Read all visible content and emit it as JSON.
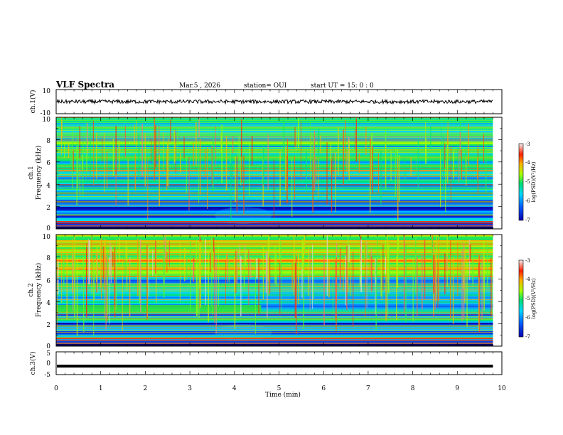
{
  "header": {
    "title": "VLF Spectra",
    "date": "Mar.5 , 2026",
    "station": "station= OUI",
    "start_ut": "start UT = 15: 0 : 0"
  },
  "chart_data": [
    {
      "id": "ch1_waveform",
      "type": "line",
      "ylabel": "ch.1(V)",
      "ylim": [
        -10,
        10
      ],
      "ytick_labels": [
        "10",
        "-10"
      ],
      "xlim": [
        0,
        10
      ],
      "trace": {
        "baseline_volts": 0,
        "noise_amplitude_volts": 1.5,
        "extent_min": [
          0,
          9.8
        ],
        "color": "#000000"
      }
    },
    {
      "id": "ch1_spectrogram",
      "type": "heatmap",
      "ylabel_lines": [
        "ch.1",
        "Frequency (kHz)"
      ],
      "ylim": [
        0,
        10
      ],
      "ytick_labels": [
        "0",
        "2",
        "4",
        "6",
        "8",
        "10"
      ],
      "xlim": [
        0,
        10
      ],
      "data_extent_min": [
        0,
        9.8
      ],
      "colorbar": {
        "label": "log(PSD)(V²/Hz)",
        "range": [
          -7,
          -3
        ],
        "tick_labels": [
          "-3",
          "-4",
          "-5",
          "-6",
          "-7"
        ],
        "colors": [
          "#0a00b0",
          "#0060ff",
          "#00d8ff",
          "#00e070",
          "#a8ff00",
          "#ffb000",
          "#ff2000",
          "#e0e0e0"
        ]
      },
      "features": [
        {
          "name": "power-line lines",
          "freq_khz": [
            0.3,
            0.55,
            0.7
          ],
          "color": "#ff3000"
        },
        {
          "name": "enhanced band",
          "freq_khz_range": [
            5.5,
            7.8
          ],
          "level": -4.9
        },
        {
          "name": "quiet band",
          "freq_khz_range": [
            0,
            2.5
          ],
          "level": -6.4
        }
      ]
    },
    {
      "id": "ch2_spectrogram",
      "type": "heatmap",
      "ylabel_lines": [
        "ch.2",
        "Frequency (kHz)"
      ],
      "ylim": [
        0,
        10
      ],
      "ytick_labels": [
        "0",
        "2",
        "4",
        "6",
        "8",
        "10"
      ],
      "xlim": [
        0,
        10
      ],
      "data_extent_min": [
        0,
        9.8
      ],
      "colorbar": {
        "label": "log(PSD)(V²/Hz)",
        "range": [
          -7,
          -3
        ],
        "tick_labels": [
          "-3",
          "-4",
          "-5",
          "-6",
          "-7"
        ],
        "colors": [
          "#0a00b0",
          "#0060ff",
          "#00d8ff",
          "#00e070",
          "#a8ff00",
          "#ffb000",
          "#ff2000",
          "#e0e0e0"
        ]
      },
      "features": [
        {
          "name": "strong band",
          "freq_khz_range": [
            6.2,
            10
          ],
          "level": -4.5
        },
        {
          "name": "tone band",
          "freq_khz_range": [
            3.0,
            3.7
          ],
          "time_min_range": [
            0,
            4.6
          ],
          "color": "#30e830"
        },
        {
          "name": "step change",
          "time_min": 4.6
        }
      ]
    },
    {
      "id": "ch3_waveform",
      "type": "line",
      "ylabel": "ch.3(V)",
      "ylim": [
        -5,
        5
      ],
      "ytick_labels": [
        "5",
        "0",
        "-5"
      ],
      "xlim": [
        0,
        10
      ],
      "trace": {
        "baseline_volts": -1.3,
        "extent_min": [
          0,
          9.8
        ],
        "color": "#000000"
      }
    }
  ],
  "xaxis": {
    "label": "Time (min)",
    "tick_labels": [
      "0",
      "1",
      "2",
      "3",
      "4",
      "5",
      "6",
      "7",
      "8",
      "9",
      "10"
    ]
  }
}
